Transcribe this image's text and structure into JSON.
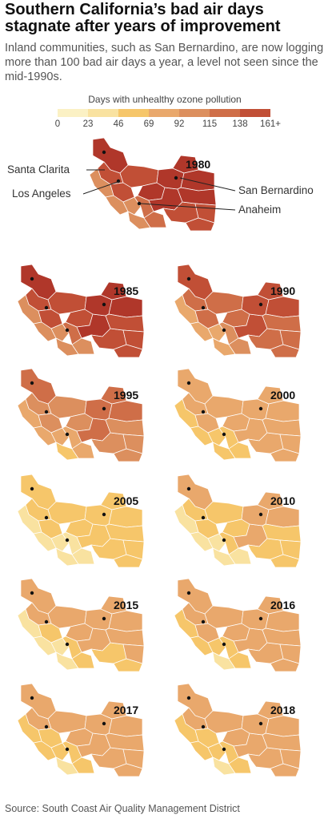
{
  "header": {
    "title": "Southern California’s bad air days stagnate after years of improvement",
    "subtitle": "Inland communities, such as San Bernardino, are now logging more than 100 bad air days a year, a level not seen since the mid-1990s."
  },
  "legend": {
    "title": "Days with unhealthy ozone pollution",
    "ticks": [
      "0",
      "23",
      "46",
      "69",
      "92",
      "115",
      "138",
      "161+"
    ],
    "colors": [
      "#fbf1c4",
      "#f9e2a0",
      "#f6c66a",
      "#e9a86c",
      "#dc8f5e",
      "#cf6e48",
      "#c14f36",
      "#b0372a"
    ]
  },
  "city_labels": {
    "santa_clarita": "Santa Clarita",
    "los_angeles": "Los Angeles",
    "san_bernardino": "San Bernardino",
    "anaheim": "Anaheim"
  },
  "maps": [
    {
      "year": "1980",
      "level": 0.92
    },
    {
      "year": "1985",
      "level": 0.9
    },
    {
      "year": "1990",
      "level": 0.75
    },
    {
      "year": "1995",
      "level": 0.62
    },
    {
      "year": "2000",
      "level": 0.45
    },
    {
      "year": "2005",
      "level": 0.28
    },
    {
      "year": "2010",
      "level": 0.35
    },
    {
      "year": "2015",
      "level": 0.38
    },
    {
      "year": "2016",
      "level": 0.44
    },
    {
      "year": "2017",
      "level": 0.42
    },
    {
      "year": "2018",
      "level": 0.43
    }
  ],
  "source": "Source: South Coast Air Quality Management District"
}
